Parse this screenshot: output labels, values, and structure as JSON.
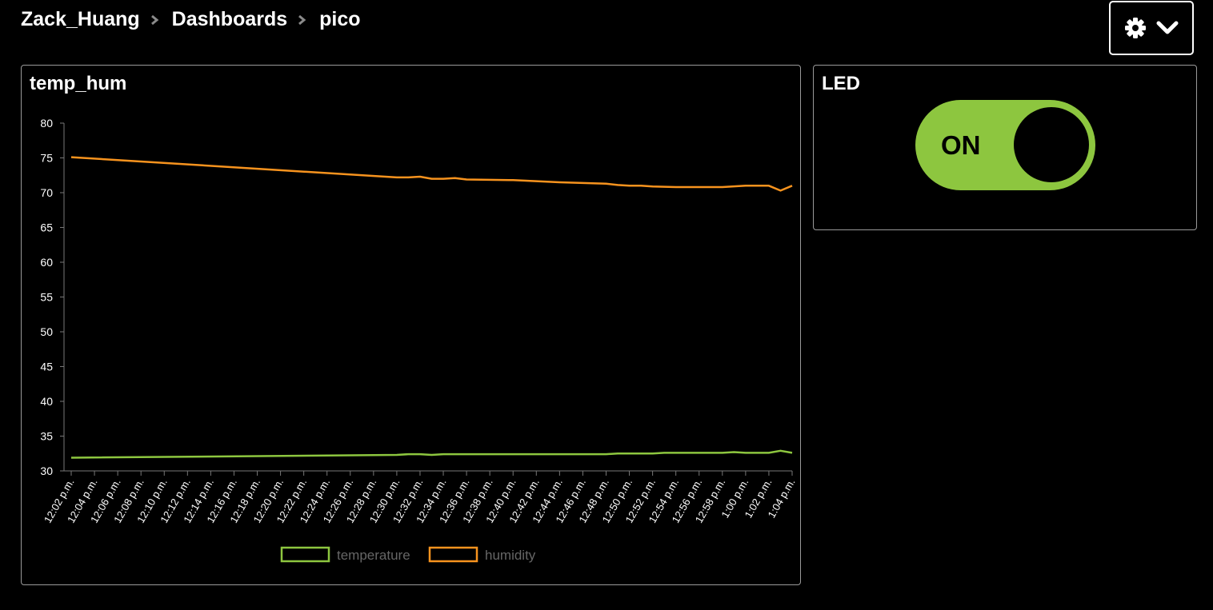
{
  "breadcrumb": {
    "user": "Zack_Huang",
    "section": "Dashboards",
    "page": "pico"
  },
  "toolbar": {
    "settings_icon": "gear-icon",
    "dropdown_icon": "chevron-down-icon"
  },
  "colors": {
    "background": "#000000",
    "temperature": "#8dc63f",
    "humidity": "#f7931e",
    "toggle_on": "#8dc63f",
    "panel_border": "#9a9a9a"
  },
  "chart_panel": {
    "title": "temp_hum"
  },
  "led_panel": {
    "title": "LED",
    "toggle_label": "ON",
    "state": "on"
  },
  "chart_data": {
    "type": "line",
    "title": "",
    "xlabel": "",
    "ylabel": "",
    "ylim": [
      30,
      80
    ],
    "yticks": [
      30,
      35,
      40,
      45,
      50,
      55,
      60,
      65,
      70,
      75,
      80
    ],
    "xlim": [
      "12:02 p.m.",
      "1:04 p.m."
    ],
    "xticks": [
      "12:02 p.m.",
      "12:04 p.m.",
      "12:06 p.m.",
      "12:08 p.m.",
      "12:10 p.m.",
      "12:12 p.m.",
      "12:14 p.m.",
      "12:16 p.m.",
      "12:18 p.m.",
      "12:20 p.m.",
      "12:22 p.m.",
      "12:24 p.m.",
      "12:26 p.m.",
      "12:28 p.m.",
      "12:30 p.m.",
      "12:32 p.m.",
      "12:34 p.m.",
      "12:36 p.m.",
      "12:38 p.m.",
      "12:40 p.m.",
      "12:42 p.m.",
      "12:44 p.m.",
      "12:46 p.m.",
      "12:48 p.m.",
      "12:50 p.m.",
      "12:52 p.m.",
      "12:54 p.m.",
      "12:56 p.m.",
      "12:58 p.m.",
      "1:00 p.m.",
      "1:02 p.m.",
      "1:04 p.m."
    ],
    "grid": false,
    "legend": "bottom",
    "series": [
      {
        "name": "temperature",
        "color": "#8dc63f",
        "x": [
          "12:02 p.m.",
          "12:30 p.m.",
          "12:31 p.m.",
          "12:32 p.m.",
          "12:33 p.m.",
          "12:34 p.m.",
          "12:36 p.m.",
          "12:40 p.m.",
          "12:44 p.m.",
          "12:48 p.m.",
          "12:49 p.m.",
          "12:52 p.m.",
          "12:53 p.m.",
          "12:54 p.m.",
          "12:58 p.m.",
          "12:59 p.m.",
          "1:00 p.m.",
          "1:02 p.m.",
          "1:03 p.m.",
          "1:04 p.m."
        ],
        "y": [
          31.9,
          32.3,
          32.4,
          32.4,
          32.3,
          32.4,
          32.4,
          32.4,
          32.4,
          32.4,
          32.5,
          32.5,
          32.6,
          32.6,
          32.6,
          32.7,
          32.6,
          32.6,
          32.9,
          32.6
        ]
      },
      {
        "name": "humidity",
        "color": "#f7931e",
        "x": [
          "12:02 p.m.",
          "12:30 p.m.",
          "12:31 p.m.",
          "12:32 p.m.",
          "12:33 p.m.",
          "12:34 p.m.",
          "12:35 p.m.",
          "12:36 p.m.",
          "12:40 p.m.",
          "12:44 p.m.",
          "12:48 p.m.",
          "12:49 p.m.",
          "12:50 p.m.",
          "12:51 p.m.",
          "12:52 p.m.",
          "12:54 p.m.",
          "12:56 p.m.",
          "12:58 p.m.",
          "1:00 p.m.",
          "1:02 p.m.",
          "1:03 p.m.",
          "1:04 p.m."
        ],
        "y": [
          75.1,
          72.2,
          72.2,
          72.3,
          72.0,
          72.0,
          72.1,
          71.9,
          71.8,
          71.5,
          71.3,
          71.1,
          71.0,
          71.0,
          70.9,
          70.8,
          70.8,
          70.8,
          71.0,
          71.0,
          70.3,
          71.0
        ]
      }
    ]
  }
}
